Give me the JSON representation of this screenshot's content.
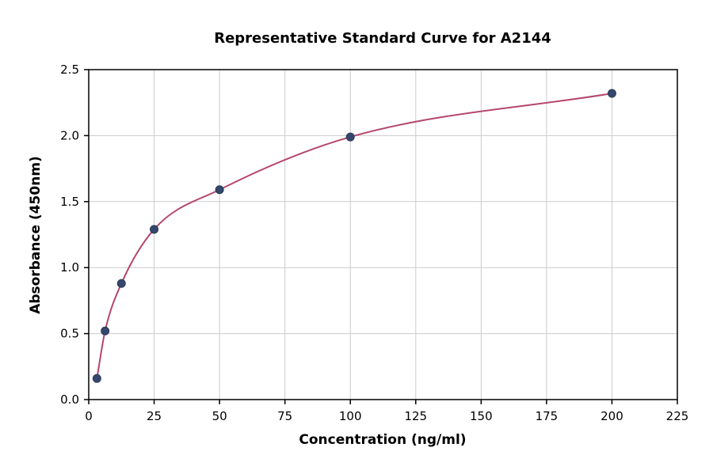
{
  "chart_data": {
    "type": "scatter",
    "title": "Representative Standard Curve for A2144",
    "xlabel": "Concentration (ng/ml)",
    "ylabel": "Absorbance (450nm)",
    "xlim": [
      0,
      225
    ],
    "ylim": [
      0,
      2.5
    ],
    "xticks": [
      0,
      25,
      50,
      75,
      100,
      125,
      150,
      175,
      200,
      225
    ],
    "yticks": [
      0.0,
      0.5,
      1.0,
      1.5,
      2.0,
      2.5
    ],
    "grid": true,
    "legend": "none",
    "series": [
      {
        "name": "standard-points",
        "type": "scatter",
        "color": "#35476d",
        "edge_color": "#2a3a57",
        "x": [
          3.125,
          6.25,
          12.5,
          25,
          50,
          100,
          200
        ],
        "y": [
          0.16,
          0.52,
          0.88,
          1.29,
          1.59,
          1.99,
          2.32
        ]
      },
      {
        "name": "fitted-curve",
        "type": "line",
        "color": "#b5476b",
        "x": [
          3.125,
          6.25,
          12.5,
          25,
          50,
          100,
          200
        ],
        "y": [
          0.16,
          0.52,
          0.88,
          1.29,
          1.59,
          1.99,
          2.32
        ]
      }
    ],
    "grid_color": "#cccccc",
    "border_color": "#000000",
    "background_color": "#ffffff"
  }
}
